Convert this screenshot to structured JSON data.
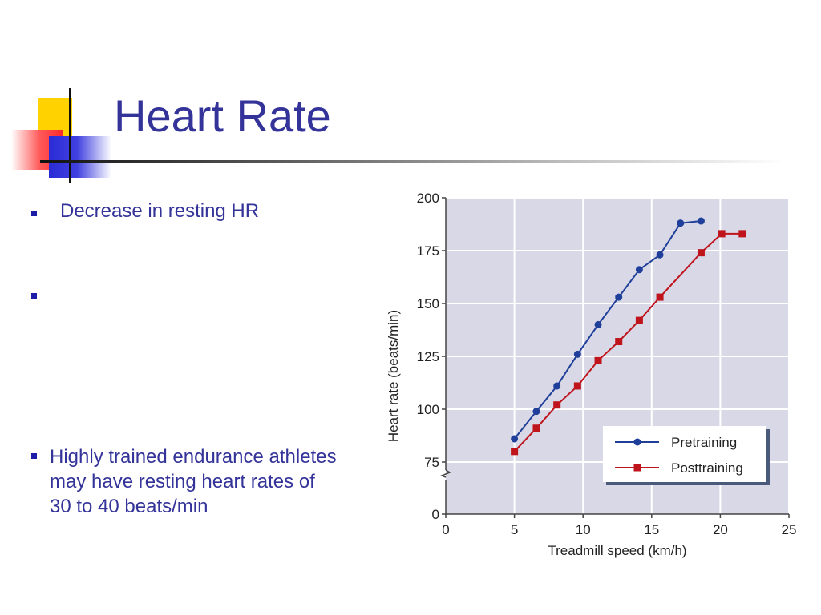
{
  "slide": {
    "title": "Heart Rate",
    "bullets": [
      {
        "text": "Decrease in resting HR"
      },
      {
        "text": ""
      },
      {
        "text": "Highly trained endurance athletes may have resting heart rates of 30 to 40 beats/min"
      }
    ]
  },
  "colors": {
    "title": "#333399",
    "bullet": "#1c1ca8",
    "plot_background": "#d8d8e6",
    "pretraining": "#1f3f9a",
    "posttraining": "#c0141d"
  },
  "chart_data": {
    "type": "line",
    "xlabel": "Treadmill speed (km/h)",
    "ylabel": "Heart rate (beats/min)",
    "xlim": [
      0,
      25
    ],
    "ylim": [
      0,
      200
    ],
    "axis_break": "y between 0 and 75",
    "x_ticks": [
      0,
      5,
      10,
      15,
      20,
      25
    ],
    "y_ticks": [
      0,
      75,
      100,
      125,
      150,
      175,
      200
    ],
    "grid": true,
    "legend_position": "bottom-right",
    "series": [
      {
        "name": "Pretraining",
        "marker": "circle",
        "color": "#1f3f9a",
        "x": [
          5,
          6.6,
          8.1,
          9.6,
          11.1,
          12.6,
          14.1,
          15.6,
          17.1,
          18.6
        ],
        "y": [
          86,
          99,
          111,
          126,
          140,
          153,
          166,
          173,
          188,
          189
        ]
      },
      {
        "name": "Posttraining",
        "marker": "square",
        "color": "#c0141d",
        "x": [
          5,
          6.6,
          8.1,
          9.6,
          11.1,
          12.6,
          14.1,
          15.6,
          18.6,
          20.1,
          21.6
        ],
        "y": [
          80,
          91,
          102,
          111,
          123,
          132,
          142,
          153,
          174,
          183,
          183
        ]
      }
    ]
  }
}
